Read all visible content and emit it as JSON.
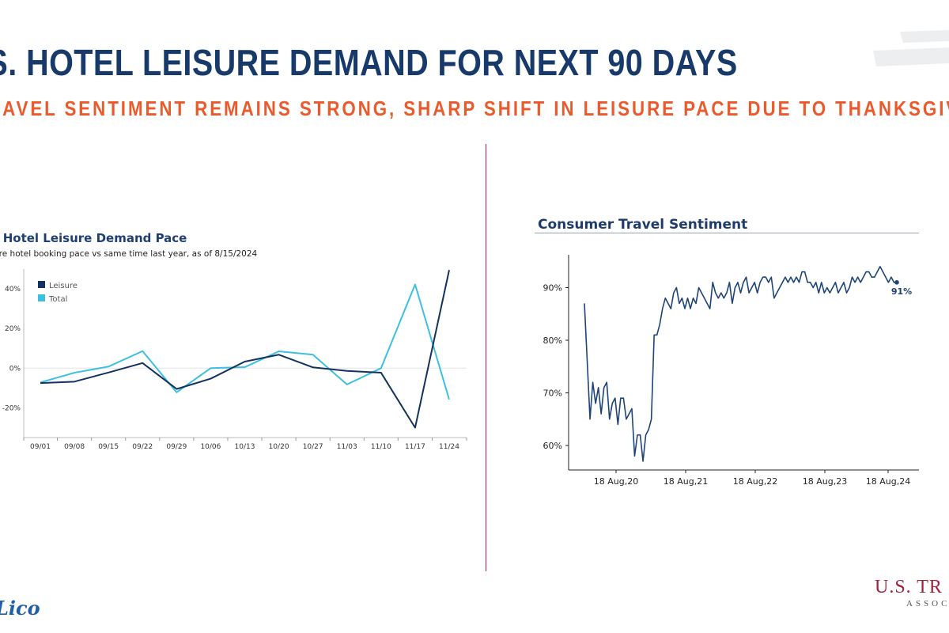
{
  "header": {
    "title": ".S. HOTEL LEISURE DEMAND FOR NEXT 90 DAYS",
    "subtitle": "RAVEL SENTIMENT REMAINS STRONG, SHARP SHIFT IN LEISURE PACE DUE TO THANKSGIV"
  },
  "footer": {
    "left_logo": "Lico",
    "right_logo": "U.S. TR",
    "right_logo_sub": "ASSOCI"
  },
  "colors": {
    "title": "#173a6b",
    "subtitle": "#ea5a2c",
    "divider": "#a3214a",
    "leisure": "#14325e",
    "total": "#3cc0e2",
    "sentiment": "#1f4478"
  },
  "chart_data": [
    {
      "type": "line",
      "title": "S. Hotel Leisure Demand Pace",
      "subtitle": "ure hotel booking pace vs same time last year, as of 8/15/2024",
      "categories": [
        "09/01",
        "09/08",
        "09/15",
        "09/22",
        "09/29",
        "10/06",
        "10/13",
        "10/20",
        "10/27",
        "11/03",
        "11/10",
        "11/17",
        "11/24"
      ],
      "series": [
        {
          "name": "Leisure",
          "color": "#14325e",
          "values": [
            -7.5,
            -6.8,
            -2.2,
            2.6,
            -10.5,
            -5.3,
            3.3,
            6.8,
            0.4,
            -1.4,
            -2.3,
            -30.0,
            49.5
          ]
        },
        {
          "name": "Total",
          "color": "#3cc0e2",
          "values": [
            -7.2,
            -2.3,
            0.8,
            8.6,
            -12.2,
            0.0,
            0.5,
            8.5,
            6.8,
            -8.2,
            0.0,
            42.2,
            -15.8
          ]
        }
      ],
      "yticks": [
        "-20%",
        "0%",
        "20%",
        "40%"
      ],
      "ylim": [
        -35,
        50
      ],
      "legend": "top-left"
    },
    {
      "type": "line",
      "title": "Consumer Travel Sentiment",
      "x_start": "2020-04",
      "x_step": "1 week",
      "series": [
        {
          "name": "",
          "color": "#1f4478",
          "values": [
            87,
            76,
            65,
            72,
            68,
            71,
            66,
            71,
            72,
            65,
            68,
            69,
            64,
            69,
            69,
            65,
            66,
            67,
            58,
            62,
            62,
            57,
            62,
            63,
            65,
            81,
            81,
            83,
            86,
            88,
            87,
            86,
            89,
            90,
            87,
            88,
            86,
            88,
            86,
            88,
            87,
            90,
            89,
            88,
            87,
            86,
            91,
            89,
            88,
            89,
            88,
            89,
            91,
            87,
            90,
            91,
            89,
            91,
            92,
            89,
            90,
            91,
            89,
            91,
            92,
            92,
            91,
            92,
            88,
            89,
            90,
            91,
            92,
            91,
            92,
            91,
            92,
            91,
            93,
            93,
            91,
            91,
            90,
            91,
            89,
            91,
            89,
            90,
            89,
            90,
            91,
            89,
            90,
            91,
            89,
            90,
            92,
            91,
            92,
            91,
            92,
            93,
            93,
            92,
            92,
            93,
            94,
            93,
            92,
            91,
            92,
            91,
            91
          ]
        }
      ],
      "xticks": [
        "18 Aug,20",
        "18 Aug,21",
        "18 Aug,22",
        "18 Aug,23",
        "18 Aug,24"
      ],
      "yticks": [
        "60%",
        "70%",
        "80%",
        "90%"
      ],
      "ylim": [
        55,
        96
      ],
      "end_label": "91%"
    }
  ]
}
